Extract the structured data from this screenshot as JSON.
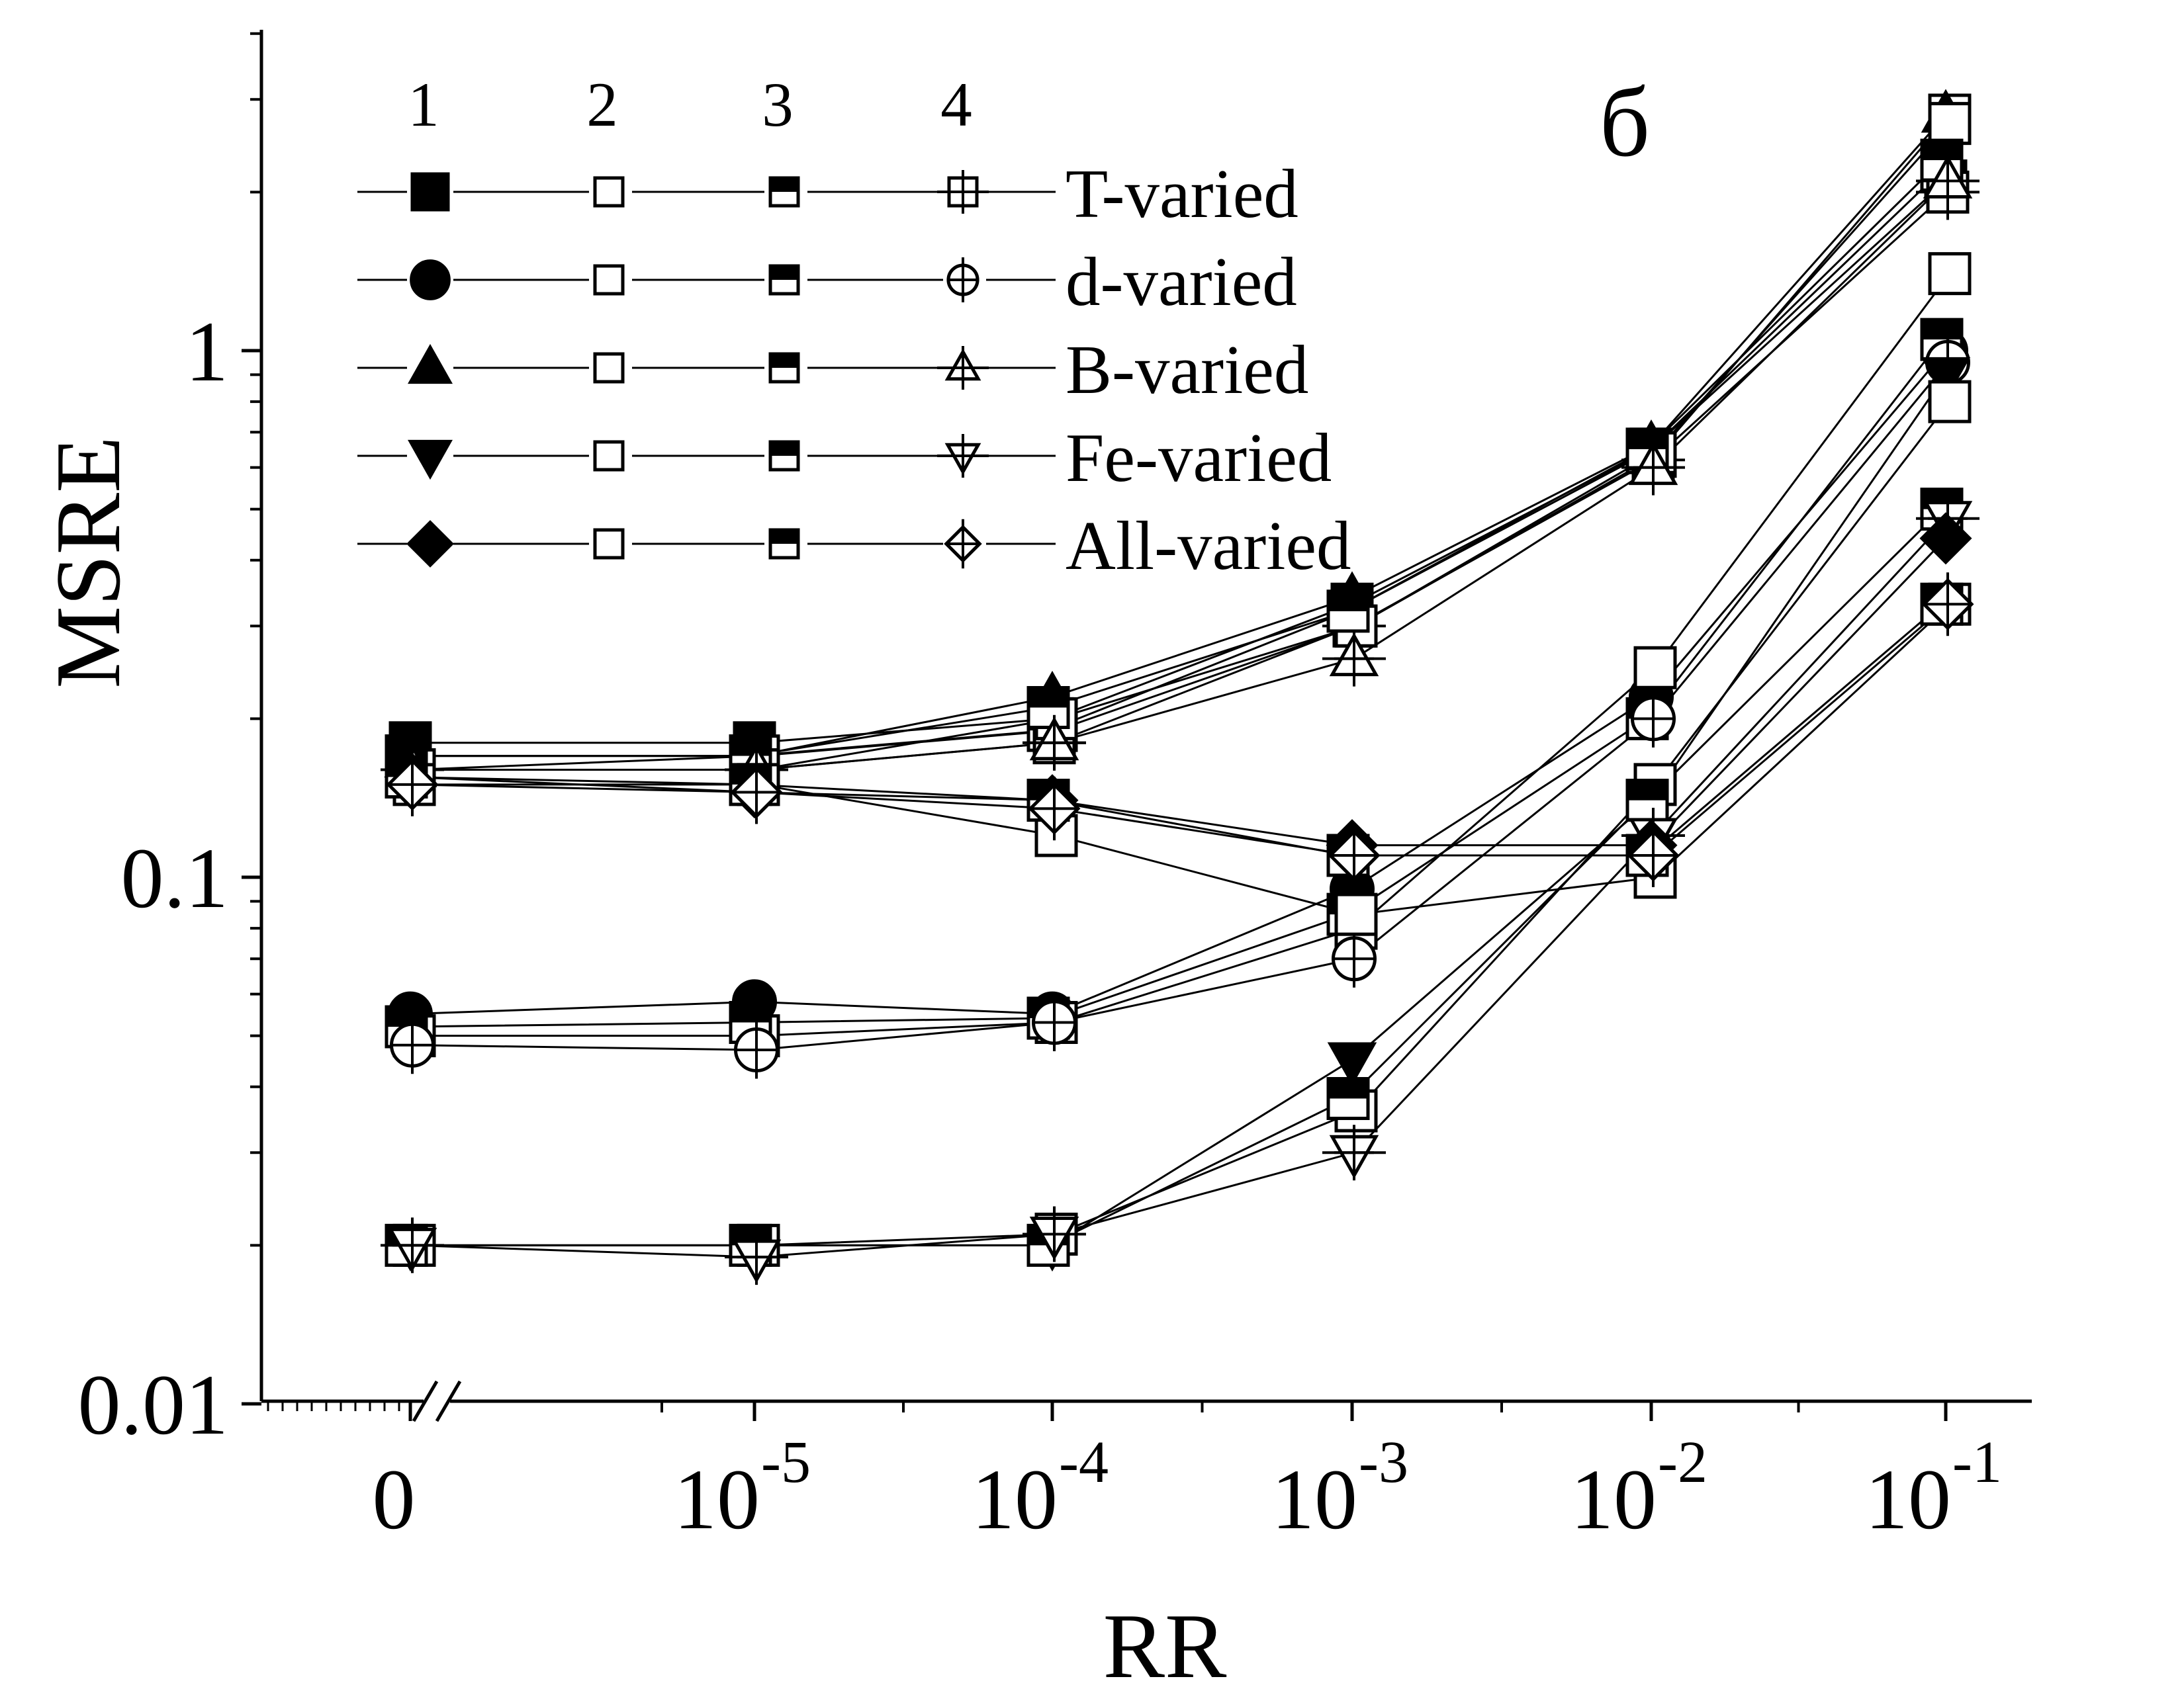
{
  "chart_data": {
    "type": "line",
    "panel_label": "б",
    "xlabel": "RR",
    "ylabel": "MSRE",
    "y_scale": "log",
    "ylim": [
      0.01,
      5
    ],
    "y_ticks": [
      {
        "value": 1,
        "label": "1"
      },
      {
        "value": 0.1,
        "label": "0.1"
      },
      {
        "value": 0.01,
        "label": "0.01"
      }
    ],
    "categories": [
      "0",
      "10-5",
      "10-4",
      "10-3",
      "10-2",
      "10-1"
    ],
    "x_ticks": [
      {
        "base": "0",
        "exp": ""
      },
      {
        "base": "10",
        "exp": "-5"
      },
      {
        "base": "10",
        "exp": "-4"
      },
      {
        "base": "10",
        "exp": "-3"
      },
      {
        "base": "10",
        "exp": "-2"
      },
      {
        "base": "10",
        "exp": "-1"
      }
    ],
    "axis_break": true,
    "legend": {
      "placement": "top-left",
      "column_headers": [
        "1",
        "2",
        "3",
        "4"
      ],
      "rows": [
        {
          "label": "T-varied",
          "markers": [
            "square-filled",
            "square-open",
            "square-half",
            "square-plus"
          ]
        },
        {
          "label": "d-varied",
          "markers": [
            "circle-filled",
            "square-open",
            "square-half",
            "circle-plus"
          ]
        },
        {
          "label": "B-varied",
          "markers": [
            "triangle-up-filled",
            "square-open",
            "square-half",
            "triangle-up-plus"
          ]
        },
        {
          "label": "Fe-varied",
          "markers": [
            "triangle-down-filled",
            "square-open",
            "square-half",
            "triangle-down-plus"
          ]
        },
        {
          "label": "All-varied",
          "markers": [
            "diamond-filled",
            "square-open",
            "square-half",
            "diamond-plus"
          ]
        }
      ]
    },
    "series": [
      {
        "group": "T-varied",
        "col": 1,
        "marker": "square-filled",
        "values": [
          0.18,
          0.18,
          0.2,
          0.33,
          0.65,
          2.1
        ]
      },
      {
        "group": "T-varied",
        "col": 2,
        "marker": "square-open",
        "values": [
          0.16,
          0.17,
          0.19,
          0.3,
          0.63,
          2.8
        ]
      },
      {
        "group": "T-varied",
        "col": 3,
        "marker": "square-half",
        "values": [
          0.17,
          0.17,
          0.19,
          0.32,
          0.64,
          2.2
        ]
      },
      {
        "group": "T-varied",
        "col": 4,
        "marker": "square-plus",
        "values": [
          0.16,
          0.16,
          0.18,
          0.3,
          0.62,
          2.0
        ]
      },
      {
        "group": "d-varied",
        "col": 1,
        "marker": "circle-filled",
        "values": [
          0.055,
          0.058,
          0.055,
          0.095,
          0.22,
          1.0
        ]
      },
      {
        "group": "d-varied",
        "col": 2,
        "marker": "square-open",
        "values": [
          0.05,
          0.05,
          0.053,
          0.08,
          0.25,
          1.4
        ]
      },
      {
        "group": "d-varied",
        "col": 3,
        "marker": "square-half",
        "values": [
          0.052,
          0.053,
          0.054,
          0.085,
          0.2,
          1.05
        ]
      },
      {
        "group": "d-varied",
        "col": 4,
        "marker": "circle-plus",
        "values": [
          0.048,
          0.047,
          0.053,
          0.07,
          0.2,
          0.95
        ]
      },
      {
        "group": "B-varied",
        "col": 1,
        "marker": "triangle-up-filled",
        "values": [
          0.17,
          0.17,
          0.22,
          0.34,
          0.66,
          2.8
        ]
      },
      {
        "group": "B-varied",
        "col": 2,
        "marker": "square-open",
        "values": [
          0.16,
          0.16,
          0.2,
          0.3,
          0.64,
          2.7
        ]
      },
      {
        "group": "B-varied",
        "col": 3,
        "marker": "square-half",
        "values": [
          0.17,
          0.17,
          0.21,
          0.32,
          0.65,
          2.3
        ]
      },
      {
        "group": "B-varied",
        "col": 4,
        "marker": "triangle-up-plus",
        "values": [
          0.16,
          0.16,
          0.18,
          0.26,
          0.6,
          2.1
        ]
      },
      {
        "group": "Fe-varied",
        "col": 1,
        "marker": "triangle-down-filled",
        "values": [
          0.02,
          0.02,
          0.02,
          0.045,
          0.14,
          0.9
        ]
      },
      {
        "group": "Fe-varied",
        "col": 2,
        "marker": "square-open",
        "values": [
          0.02,
          0.02,
          0.021,
          0.036,
          0.15,
          0.8
        ]
      },
      {
        "group": "Fe-varied",
        "col": 3,
        "marker": "square-half",
        "values": [
          0.02,
          0.02,
          0.02,
          0.038,
          0.14,
          0.5
        ]
      },
      {
        "group": "Fe-varied",
        "col": 4,
        "marker": "triangle-down-plus",
        "values": [
          0.02,
          0.019,
          0.021,
          0.03,
          0.12,
          0.48
        ]
      },
      {
        "group": "All-varied",
        "col": 1,
        "marker": "diamond-filled",
        "values": [
          0.155,
          0.145,
          0.14,
          0.115,
          0.115,
          0.44
        ]
      },
      {
        "group": "All-varied",
        "col": 2,
        "marker": "square-open",
        "values": [
          0.15,
          0.15,
          0.12,
          0.085,
          0.1,
          0.33
        ]
      },
      {
        "group": "All-varied",
        "col": 3,
        "marker": "square-half",
        "values": [
          0.155,
          0.15,
          0.14,
          0.11,
          0.11,
          0.33
        ]
      },
      {
        "group": "All-varied",
        "col": 4,
        "marker": "diamond-plus",
        "values": [
          0.15,
          0.145,
          0.135,
          0.11,
          0.11,
          0.33
        ]
      }
    ]
  }
}
